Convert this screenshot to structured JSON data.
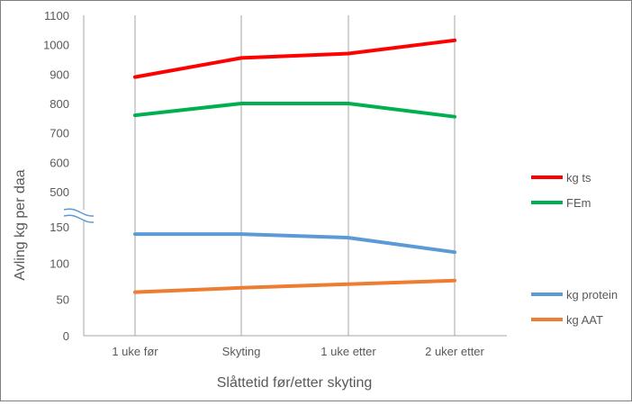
{
  "chart_data": {
    "type": "line",
    "title": "",
    "xlabel": "Slåttetid før/etter skyting",
    "ylabel": "Avling kg per daa",
    "categories": [
      "1 uke før",
      "Skyting",
      "1 uke etter",
      "2 uker etter"
    ],
    "axis_break": true,
    "panels": [
      {
        "name": "upper",
        "ylim": [
          500,
          1100
        ],
        "ticks": [
          500,
          600,
          700,
          800,
          900,
          1000,
          1100
        ],
        "series": [
          {
            "name": "kg ts",
            "color": "#ff0000",
            "values": [
              890,
              955,
              970,
              1015
            ]
          },
          {
            "name": "FEm",
            "color": "#00b050",
            "values": [
              760,
              800,
              800,
              755
            ]
          }
        ]
      },
      {
        "name": "lower",
        "ylim": [
          0,
          150
        ],
        "ticks": [
          0,
          50,
          100,
          150
        ],
        "series": [
          {
            "name": "kg protein",
            "color": "#5b9bd5",
            "values": [
              140,
              140,
              135,
              115
            ]
          },
          {
            "name": "kg AAT",
            "color": "#ed7d31",
            "values": [
              60,
              66,
              71,
              76
            ]
          }
        ]
      }
    ],
    "grid": "vertical",
    "legend_position": "right"
  }
}
